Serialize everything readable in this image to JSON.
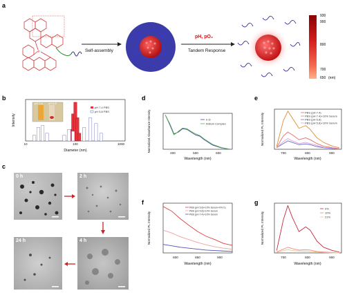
{
  "panels": {
    "a": {
      "letter": "a",
      "self_assembly": "Self-assembly",
      "stimulus": "pH, pO₂",
      "tandem": "Tandem Response",
      "colorbar_ticks": [
        "930",
        "900",
        "800",
        "700",
        "650"
      ],
      "colorbar_unit": "(nm)"
    },
    "b": {
      "letter": "b",
      "photo_labels": [
        "pH 7.4",
        "pH 5.8"
      ],
      "legend": [
        "pH 7.4 PBS",
        "pH 5.8 PBS"
      ],
      "xlabel": "Diameter (nm)",
      "ylabel": "Intensity",
      "xticks": [
        "10",
        "100",
        "1000"
      ]
    },
    "c": {
      "letter": "c",
      "times": [
        "0 h",
        "2 h",
        "4 h",
        "24 h"
      ]
    },
    "d": {
      "letter": "d",
      "legend": [
        "Ir-D",
        "Iridium Complex"
      ],
      "xlabel": "Wavelength (nm)",
      "ylabel": "Normalized Absorbance Intensity",
      "xticks": [
        "400",
        "500",
        "600"
      ]
    },
    "e": {
      "letter": "e",
      "legend": [
        "PBS (pH 7.4)",
        "PBS (pH 7.4)+10% Serum",
        "PBS (pH 5.8)",
        "PBS (pH 5.8)+10% Serum"
      ],
      "xlabel": "Wavelength (nm)",
      "ylabel": "Normalized PL Intensity",
      "xticks": [
        "700",
        "800",
        "900"
      ]
    },
    "f": {
      "letter": "f",
      "legend": [
        "PBS (pH 5.8)+10% Serum+0% O₂",
        "PBS (pH 5.8)+10% Serum",
        "PBS (pH 7.4)+10% Serum"
      ],
      "xlabel": "Wavelength (nm)",
      "ylabel": "Normalized PL Intensity",
      "xticks": [
        "800",
        "850",
        "900"
      ]
    },
    "g": {
      "letter": "g",
      "legend": [
        "0%",
        "10%",
        "21%"
      ],
      "xlabel": "Wavelength (nm)",
      "ylabel": "Normalized PL Intensity",
      "xticks": [
        "700",
        "800",
        "900"
      ]
    }
  },
  "chart_data": [
    {
      "panel": "b",
      "type": "bar",
      "xlabel": "Diameter (nm)",
      "ylabel": "Intensity",
      "series": [
        {
          "name": "pH 7.4 PBS",
          "color": "#e8323c",
          "x": [
            80,
            90,
            100,
            110,
            120
          ],
          "values": [
            0.3,
            0.7,
            1.0,
            0.6,
            0.2
          ]
        },
        {
          "name": "pH 5.8 PBS",
          "color": "#6060b8",
          "x": [
            15,
            18,
            22,
            27,
            60,
            75,
            90,
            150,
            200,
            260,
            330
          ],
          "values": [
            0.15,
            0.35,
            0.4,
            0.2,
            0.15,
            0.3,
            0.25,
            0.35,
            0.6,
            0.45,
            0.2
          ]
        }
      ]
    },
    {
      "panel": "d",
      "type": "line",
      "xlabel": "Wavelength (nm)",
      "ylabel": "Normalized Absorbance Intensity",
      "series": [
        {
          "name": "Ir-D",
          "color": "#4a4aa0",
          "x": [
            360,
            380,
            400,
            420,
            440,
            460,
            480,
            500,
            520,
            540,
            560,
            580,
            620,
            660
          ],
          "y": [
            1.0,
            0.75,
            0.45,
            0.5,
            0.6,
            0.58,
            0.5,
            0.42,
            0.38,
            0.28,
            0.2,
            0.12,
            0.04,
            0.0
          ]
        },
        {
          "name": "Iridium Complex",
          "color": "#55b055",
          "x": [
            360,
            380,
            400,
            420,
            440,
            460,
            480,
            500,
            520,
            540,
            560,
            580,
            620,
            660
          ],
          "y": [
            1.0,
            0.72,
            0.42,
            0.52,
            0.62,
            0.6,
            0.52,
            0.45,
            0.4,
            0.3,
            0.22,
            0.14,
            0.05,
            0.0
          ]
        }
      ]
    },
    {
      "panel": "e",
      "type": "line",
      "xlabel": "Wavelength (nm)",
      "ylabel": "Normalized PL Intensity",
      "series": [
        {
          "name": "PBS (pH 7.4)",
          "color": "#e66a6a",
          "x": [
            650,
            680,
            700,
            720,
            750,
            780,
            800,
            830,
            860,
            900,
            930
          ],
          "y": [
            0.05,
            0.35,
            0.45,
            0.38,
            0.25,
            0.3,
            0.25,
            0.15,
            0.08,
            0.04,
            0.02
          ]
        },
        {
          "name": "PBS (pH 7.4)+10% Serum",
          "color": "#e58a2c",
          "x": [
            650,
            680,
            700,
            720,
            750,
            780,
            800,
            830,
            860,
            900,
            930
          ],
          "y": [
            0.08,
            0.75,
            1.0,
            0.82,
            0.55,
            0.62,
            0.52,
            0.3,
            0.18,
            0.08,
            0.04
          ]
        },
        {
          "name": "PBS (pH 5.8)",
          "color": "#6b6bd0",
          "x": [
            650,
            680,
            700,
            720,
            750,
            780,
            800,
            830,
            860,
            900,
            930
          ],
          "y": [
            0.04,
            0.15,
            0.22,
            0.18,
            0.12,
            0.14,
            0.12,
            0.07,
            0.04,
            0.02,
            0.01
          ]
        },
        {
          "name": "PBS (pH 5.8)+10% Serum",
          "color": "#d8a0d8",
          "x": [
            650,
            680,
            700,
            720,
            750,
            780,
            800,
            830,
            860,
            900,
            930
          ],
          "y": [
            0.04,
            0.2,
            0.28,
            0.22,
            0.15,
            0.18,
            0.15,
            0.1,
            0.05,
            0.03,
            0.01
          ]
        }
      ]
    },
    {
      "panel": "f",
      "type": "line",
      "xlabel": "Wavelength (nm)",
      "ylabel": "Normalized PL Intensity",
      "series": [
        {
          "name": "PBS (pH 5.8)+10% Serum+0% O₂",
          "color": "#e04040",
          "x": [
            770,
            790,
            810,
            830,
            850,
            870,
            890,
            910,
            930
          ],
          "y": [
            0.98,
            0.88,
            0.72,
            0.58,
            0.45,
            0.35,
            0.28,
            0.2,
            0.16
          ]
        },
        {
          "name": "PBS (pH 5.8)+10% Serum",
          "color": "#f0a0a0",
          "x": [
            770,
            790,
            810,
            830,
            850,
            870,
            890,
            910,
            930
          ],
          "y": [
            0.48,
            0.42,
            0.34,
            0.28,
            0.22,
            0.17,
            0.13,
            0.1,
            0.08
          ]
        },
        {
          "name": "PBS (pH 7.4)+10% Serum",
          "color": "#5050b0",
          "x": [
            770,
            790,
            810,
            830,
            850,
            870,
            890,
            910,
            930
          ],
          "y": [
            0.18,
            0.15,
            0.12,
            0.1,
            0.08,
            0.06,
            0.05,
            0.04,
            0.03
          ]
        }
      ]
    },
    {
      "panel": "g",
      "type": "line",
      "xlabel": "Wavelength (nm)",
      "ylabel": "Normalized PL Intensity",
      "series": [
        {
          "name": "0%",
          "color": "#c82838",
          "x": [
            650,
            680,
            700,
            720,
            750,
            780,
            800,
            830,
            860,
            900,
            930
          ],
          "y": [
            0.05,
            0.7,
            1.0,
            0.75,
            0.45,
            0.55,
            0.48,
            0.25,
            0.12,
            0.05,
            0.02
          ]
        },
        {
          "name": "10%",
          "color": "#f08888",
          "x": [
            650,
            680,
            700,
            720,
            750,
            780,
            800,
            830,
            860,
            900,
            930
          ],
          "y": [
            0.02,
            0.08,
            0.12,
            0.09,
            0.06,
            0.07,
            0.06,
            0.03,
            0.02,
            0.01,
            0.0
          ]
        },
        {
          "name": "21%",
          "color": "#e8c890",
          "x": [
            650,
            680,
            700,
            720,
            750,
            780,
            800,
            830,
            860,
            900,
            930
          ],
          "y": [
            0.01,
            0.05,
            0.07,
            0.05,
            0.04,
            0.04,
            0.03,
            0.02,
            0.01,
            0.0,
            0.0
          ]
        }
      ]
    }
  ]
}
